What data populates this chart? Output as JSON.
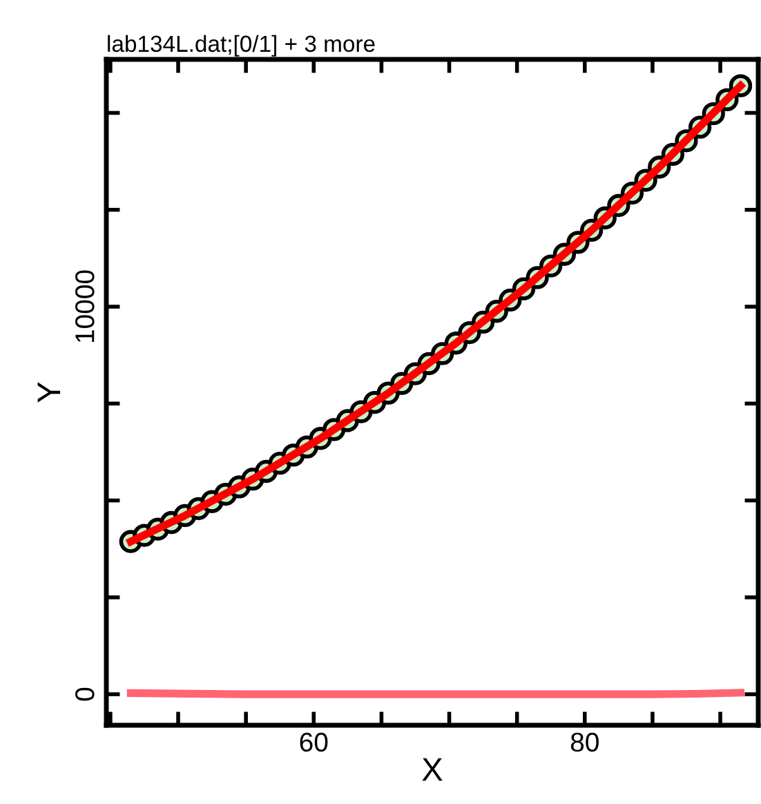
{
  "chart_data": {
    "type": "scatter",
    "title": "lab134L.dat;[0/1] + 3 more",
    "xlabel": "X",
    "ylabel": "Y",
    "xlim": [
      44.7,
      92.8
    ],
    "ylim": [
      -800,
      16380
    ],
    "xticks": [
      {
        "value": 45,
        "label": null
      },
      {
        "value": 50,
        "label": null
      },
      {
        "value": 55,
        "label": null
      },
      60,
      {
        "value": 65,
        "label": null
      },
      {
        "value": 70,
        "label": null
      },
      {
        "value": 75,
        "label": null
      },
      80,
      {
        "value": 85,
        "label": null
      },
      {
        "value": 90,
        "label": null
      }
    ],
    "yticks": [
      0,
      {
        "value": 2500,
        "label": null
      },
      {
        "value": 5000,
        "label": null
      },
      {
        "value": 7500,
        "label": null
      },
      10000,
      {
        "value": 12500,
        "label": null
      },
      {
        "value": 15000,
        "label": null
      }
    ],
    "grid": false,
    "legend": false,
    "series": [
      {
        "marker": "circle",
        "color": "#c8f0c8",
        "x": [
          46.5,
          47.5,
          48.5,
          49.5,
          50.5,
          51.5,
          52.5,
          53.5,
          54.5,
          55.5,
          56.5,
          57.5,
          58.5,
          59.5,
          60.5,
          61.5,
          62.5,
          63.5,
          64.5,
          65.5,
          66.5,
          67.5,
          68.5,
          69.5,
          70.5,
          71.5,
          72.5,
          73.5,
          74.5,
          75.5,
          76.5,
          77.5,
          78.5,
          79.5,
          80.5,
          81.5,
          82.5,
          83.5,
          84.5,
          85.5,
          86.5,
          87.5,
          88.5,
          89.5,
          90.5,
          91.5
        ],
        "values": [
          3940,
          4100,
          4260,
          4430,
          4610,
          4790,
          4970,
          5160,
          5350,
          5550,
          5750,
          5960,
          6170,
          6380,
          6600,
          6830,
          7060,
          7290,
          7530,
          7770,
          8020,
          8270,
          8530,
          8790,
          9060,
          9330,
          9600,
          9880,
          10170,
          10460,
          10750,
          11050,
          11350,
          11660,
          11970,
          12290,
          12610,
          12930,
          13260,
          13600,
          13930,
          14280,
          14630,
          14980,
          15340,
          15700
        ]
      },
      {
        "type": "line",
        "marker": "none",
        "line_style": "solid",
        "color": "#ff0000",
        "x": [
          46.5,
          50.5,
          55.5,
          60.5,
          65.5,
          70.5,
          75.5,
          80.5,
          85.5,
          91.5
        ],
        "values": [
          3940,
          4610,
          5550,
          6600,
          7770,
          9060,
          10460,
          11970,
          13600,
          15700
        ]
      },
      {
        "type": "line",
        "marker": "none",
        "line_style": "solid",
        "color": "#ff6670",
        "x": [
          46.5,
          55,
          65,
          75,
          85,
          88,
          91.5
        ],
        "values": [
          30,
          0,
          0,
          0,
          0,
          10,
          40
        ]
      }
    ]
  }
}
